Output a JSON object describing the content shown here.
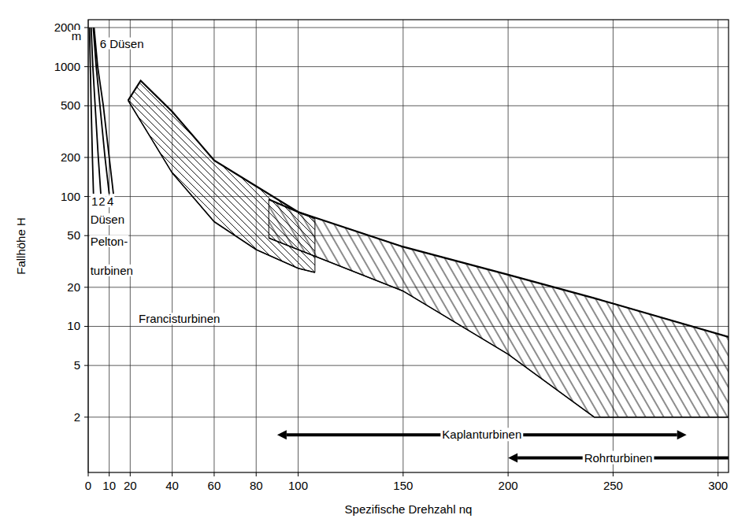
{
  "chart_data": {
    "type": "line",
    "x_label": "Spezifische Drehzahl nq",
    "y_label": "Fallhöhe H",
    "xlim": [
      0,
      305
    ],
    "ylim": [
      0.75,
      2300
    ],
    "xticks": [
      0,
      10,
      20,
      40,
      60,
      80,
      100,
      150,
      200,
      250,
      300
    ],
    "yticks": [
      2,
      5,
      10,
      20,
      50,
      100,
      200,
      500,
      1000,
      2000
    ],
    "log": "y",
    "grid": true,
    "color": "#000000",
    "series": [
      {
        "type": "line",
        "x": [
          2.5,
          2,
          1.4,
          1,
          0.6
        ],
        "values": [
          105,
          200,
          500,
          1000,
          2000
        ]
      },
      {
        "type": "line",
        "x": [
          6,
          4.8,
          3.3,
          2.2,
          1.4
        ],
        "values": [
          105,
          200,
          500,
          1000,
          2000
        ]
      },
      {
        "type": "line",
        "x": [
          10,
          8,
          5.6,
          3.8,
          2.4
        ],
        "values": [
          105,
          200,
          500,
          1000,
          2000
        ]
      },
      {
        "type": "line",
        "x": [
          12,
          10,
          7.2,
          4.5,
          2.8
        ],
        "values": [
          105,
          200,
          500,
          1000,
          2000
        ]
      },
      {
        "type": "band",
        "x": [
          19,
          25,
          40,
          60,
          80,
          100,
          108
        ],
        "values": [
          550,
          780,
          450,
          190,
          120,
          76,
          68
        ],
        "lower": [
          550,
          380,
          152,
          64,
          39,
          28,
          26
        ]
      },
      {
        "type": "band",
        "x": [
          86,
          100,
          150,
          200,
          241,
          250,
          305
        ],
        "values": [
          95,
          76,
          41,
          25,
          16.5,
          15,
          8.3
        ],
        "lower": [
          48,
          39,
          18.7,
          6.1,
          2,
          2,
          2
        ]
      }
    ],
    "annotations": [
      {
        "text": "m",
        "x": -8,
        "y": 1600
      },
      {
        "text": "6 Düsen",
        "x": 5.5,
        "y": 1400
      },
      {
        "text": "1",
        "x": 1.5,
        "y": 85
      },
      {
        "text": "2",
        "x": 5,
        "y": 85
      },
      {
        "text": "4",
        "x": 9,
        "y": 85
      },
      {
        "text": "Düsen",
        "x": 1,
        "y": 62
      },
      {
        "text": "Pelton-",
        "x": 1,
        "y": 42
      },
      {
        "text": "turbinen",
        "x": 1,
        "y": 25
      },
      {
        "text": "Francisturbinen",
        "x": 24,
        "y": 10.6
      },
      {
        "text": "Kaplanturbinen",
        "x": [
          90,
          285
        ],
        "y": 1.46
      },
      {
        "text": "Rohrturbinen",
        "x": [
          200,
          305
        ],
        "y": 0.97
      }
    ]
  }
}
